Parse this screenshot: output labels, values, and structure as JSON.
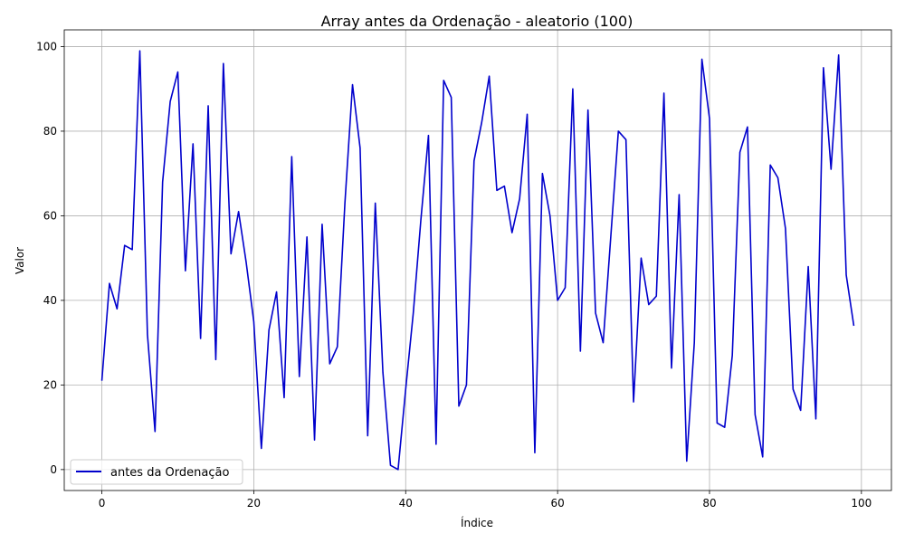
{
  "chart_data": {
    "type": "line",
    "title": "Array antes da Ordenação - aleatorio (100)",
    "xlabel": "Índice",
    "ylabel": "Valor",
    "xlim": [
      -4.95,
      103.95
    ],
    "ylim": [
      -4.95,
      103.95
    ],
    "xticks": [
      0,
      20,
      40,
      60,
      80,
      100
    ],
    "yticks": [
      0,
      20,
      40,
      60,
      80,
      100
    ],
    "grid": true,
    "legend_position": "lower-left",
    "series": [
      {
        "name": "antes da Ordenação",
        "color": "#0000cc",
        "x": [
          0,
          1,
          2,
          3,
          4,
          5,
          6,
          7,
          8,
          9,
          10,
          11,
          12,
          13,
          14,
          15,
          16,
          17,
          18,
          19,
          20,
          21,
          22,
          23,
          24,
          25,
          26,
          27,
          28,
          29,
          30,
          31,
          32,
          33,
          34,
          35,
          36,
          37,
          38,
          39,
          40,
          41,
          42,
          43,
          44,
          45,
          46,
          47,
          48,
          49,
          50,
          51,
          52,
          53,
          54,
          55,
          56,
          57,
          58,
          59,
          60,
          61,
          62,
          63,
          64,
          65,
          66,
          67,
          68,
          69,
          70,
          71,
          72,
          73,
          74,
          75,
          76,
          77,
          78,
          79,
          80,
          81,
          82,
          83,
          84,
          85,
          86,
          87,
          88,
          89,
          90,
          91,
          92,
          93,
          94,
          95,
          96,
          97,
          98,
          99
        ],
        "values": [
          21,
          44,
          38,
          53,
          52,
          99,
          32,
          9,
          68,
          87,
          94,
          47,
          77,
          31,
          86,
          26,
          96,
          51,
          61,
          49,
          35,
          5,
          33,
          42,
          17,
          74,
          22,
          55,
          7,
          58,
          25,
          29,
          63,
          91,
          76,
          8,
          63,
          23,
          1,
          0,
          19,
          37,
          59,
          79,
          6,
          92,
          88,
          15,
          20,
          73,
          82,
          93,
          66,
          67,
          56,
          64,
          84,
          4,
          70,
          60,
          40,
          43,
          90,
          28,
          85,
          37,
          30,
          55,
          80,
          78,
          16,
          50,
          39,
          41,
          89,
          24,
          65,
          2,
          30,
          97,
          83,
          11,
          10,
          27,
          75,
          81,
          13,
          3,
          72,
          69,
          57,
          19,
          14,
          48,
          12,
          95,
          71,
          98,
          46,
          34
        ]
      }
    ]
  }
}
